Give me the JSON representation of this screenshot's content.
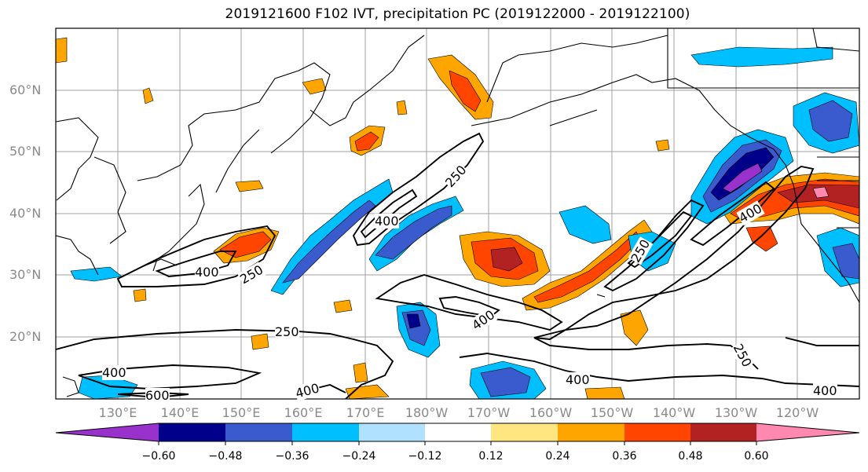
{
  "title": "2019121600 F102 IVT, precipitation PC (2019122000 - 2019122100)",
  "map": {
    "lat_labels": [
      "60°N",
      "50°N",
      "40°N",
      "30°N",
      "20°N"
    ],
    "lon_labels": [
      "130°E",
      "140°E",
      "150°E",
      "160°E",
      "170°E",
      "180°W",
      "170°W",
      "160°W",
      "150°W",
      "140°W",
      "130°W",
      "120°W"
    ],
    "ivt_contour_labels": [
      "250",
      "400",
      "400",
      "250",
      "250",
      "400",
      "600",
      "400",
      "400",
      "250",
      "400",
      "250",
      "400",
      "250",
      "400"
    ],
    "contour_line_color": "#000000",
    "gridline_color": "#a0a0a0"
  },
  "colorbar": {
    "tick_labels": [
      "−0.60",
      "−0.48",
      "−0.36",
      "−0.24",
      "−0.12",
      "0.12",
      "0.24",
      "0.36",
      "0.48",
      "0.60"
    ],
    "colors": [
      "#9932cc",
      "#00008b",
      "#3a5bcd",
      "#00bfff",
      "#b0e2ff",
      "#ffffff",
      "#ffe680",
      "#ffa500",
      "#ff4500",
      "#b22222",
      "#ff88b0"
    ]
  }
}
